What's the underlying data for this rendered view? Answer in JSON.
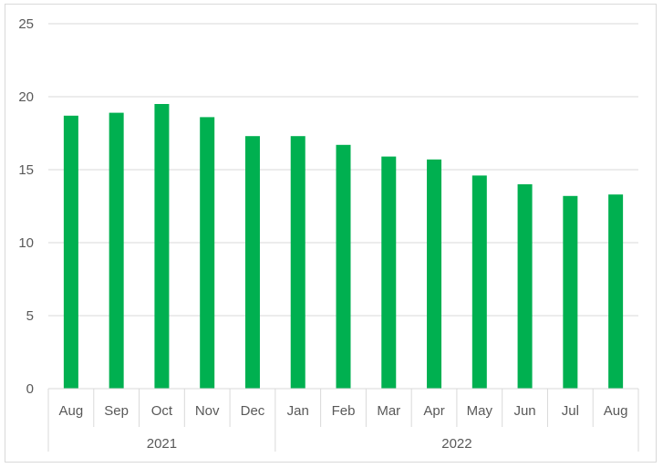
{
  "chart_data": {
    "type": "bar",
    "title": "",
    "xlabel": "",
    "ylabel": "",
    "ylim": [
      0,
      25
    ],
    "yticks": [
      0,
      5,
      10,
      15,
      20,
      25
    ],
    "grid": true,
    "legend": "none",
    "bar_color": "#00b050",
    "categories": [
      "Aug",
      "Sep",
      "Oct",
      "Nov",
      "Dec",
      "Jan",
      "Feb",
      "Mar",
      "Apr",
      "May",
      "Jun",
      "Jul",
      "Aug"
    ],
    "groups": [
      {
        "label": "2021",
        "count": 5
      },
      {
        "label": "2022",
        "count": 8
      }
    ],
    "series": [
      {
        "values": [
          18.7,
          18.9,
          19.5,
          18.6,
          17.3,
          17.3,
          16.7,
          15.9,
          15.7,
          14.6,
          14.0,
          13.2,
          13.3
        ]
      }
    ]
  },
  "colors": {
    "bar": "#00b050",
    "grid": "#d9d9d9",
    "text": "#595959",
    "border": "#d9d9d9"
  }
}
